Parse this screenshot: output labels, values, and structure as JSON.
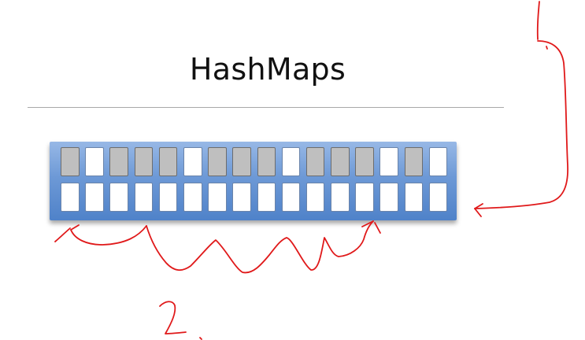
{
  "slide": {
    "title": "HashMaps"
  },
  "array": {
    "top_row_filled": [
      true,
      false,
      true,
      true,
      true,
      false,
      true,
      true,
      true,
      false,
      true,
      true,
      true,
      false,
      true,
      false
    ],
    "bottom_row_filled": [
      false,
      false,
      false,
      false,
      false,
      false,
      false,
      false,
      false,
      false,
      false,
      false,
      false,
      false,
      false,
      false
    ]
  },
  "annotations": {
    "label_1": "1",
    "label_2": "2",
    "ink_color": "#e0191a"
  }
}
